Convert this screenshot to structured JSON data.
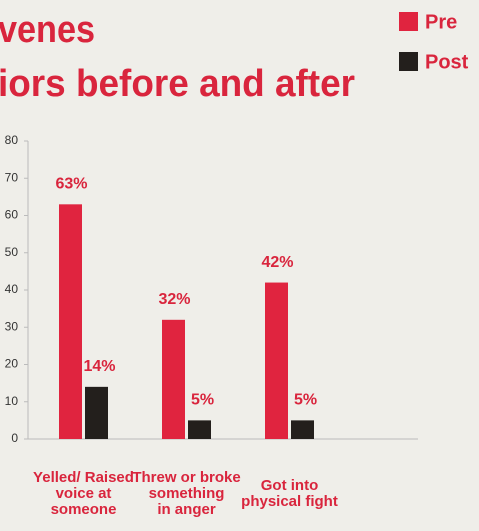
{
  "chart_data": {
    "type": "bar",
    "title_lines": [
      "venes",
      "iors before and after"
    ],
    "categories": [
      [
        "Yelled/ Raised",
        "voice at",
        "someone"
      ],
      [
        "Threw or broke",
        "something",
        "in anger"
      ],
      [
        "Got into",
        "physical fight"
      ]
    ],
    "series": [
      {
        "name": "Pre",
        "color": "#e0243f",
        "values": [
          63,
          32,
          42
        ],
        "value_labels": [
          "63%",
          "32%",
          "42%"
        ]
      },
      {
        "name": "Post",
        "color": "#231f1c",
        "values": [
          14,
          5,
          5
        ],
        "value_labels": [
          "14%",
          "5%",
          "5%"
        ]
      }
    ],
    "ylim": [
      0,
      80
    ],
    "yticks": [
      0,
      10,
      20,
      30,
      40,
      50,
      60,
      70,
      80
    ]
  }
}
